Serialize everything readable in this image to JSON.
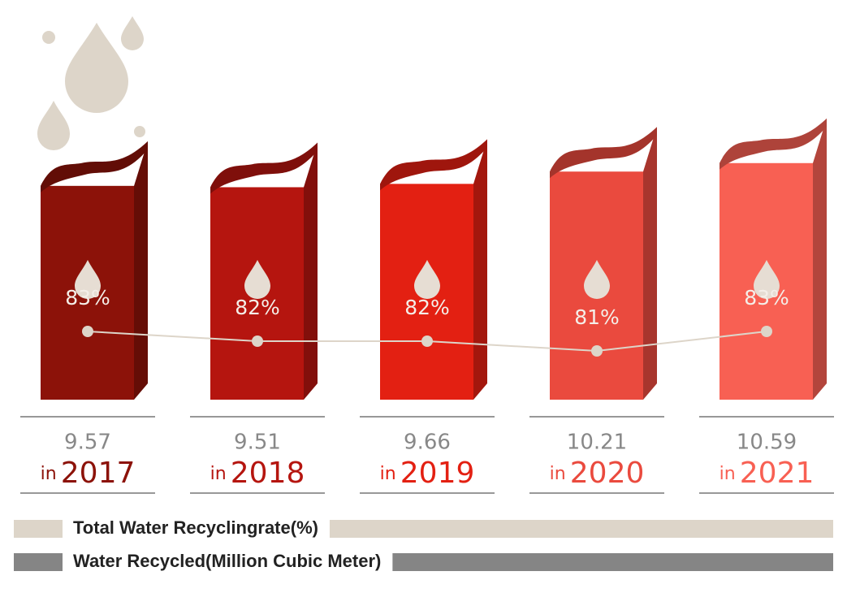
{
  "chart_data": {
    "type": "bar",
    "categories": [
      "2017",
      "2018",
      "2019",
      "2020",
      "2021"
    ],
    "category_prefix": "in",
    "bar_colors": [
      "#8c1209",
      "#b5150f",
      "#e32012",
      "#ea4a3e",
      "#f86053"
    ],
    "series": [
      {
        "name": "Total Water Recyclingrate(%)",
        "color": "#ddd5c9",
        "values": [
          83,
          82,
          82,
          81,
          83
        ],
        "value_labels": [
          "83%",
          "82%",
          "82%",
          "81%",
          "83%"
        ]
      },
      {
        "name": "Water Recycled(Million Cubic Meter)",
        "color": "#858585",
        "values": [
          9.57,
          9.51,
          9.66,
          10.21,
          10.59
        ]
      }
    ]
  }
}
